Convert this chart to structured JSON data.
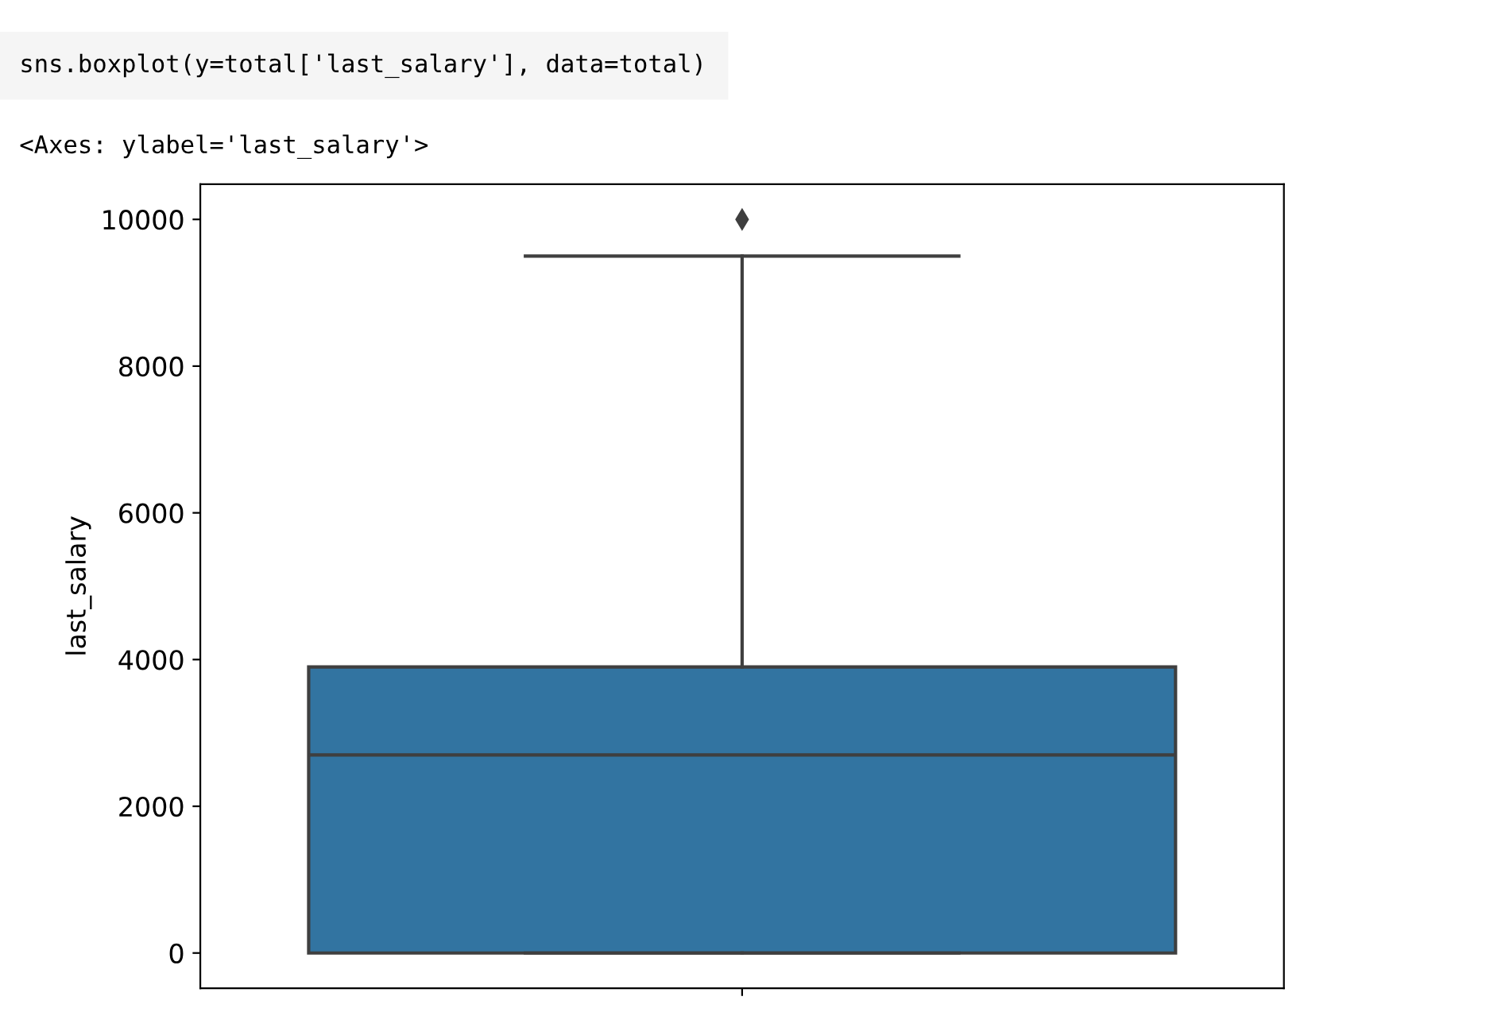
{
  "chart_data": {
    "type": "box",
    "ylabel": "last_salary",
    "categories": [
      null
    ],
    "annotations": [
      "sns.boxplot(y=total['last_salary'], data=total)",
      "<Axes: ylabel='last_salary'>"
    ],
    "series": [
      {
        "color": "#3274a1",
        "boxes": [
          {
            "low": 0,
            "q1": 0,
            "median": 2700,
            "q3": 3900,
            "high": 9500,
            "outliers": [
              10000
            ]
          }
        ]
      }
    ],
    "ylim": [
      -480,
      10480
    ],
    "yticks": [
      0,
      2000,
      4000,
      6000,
      8000,
      10000
    ],
    "grid": false,
    "marker": "diamond"
  }
}
